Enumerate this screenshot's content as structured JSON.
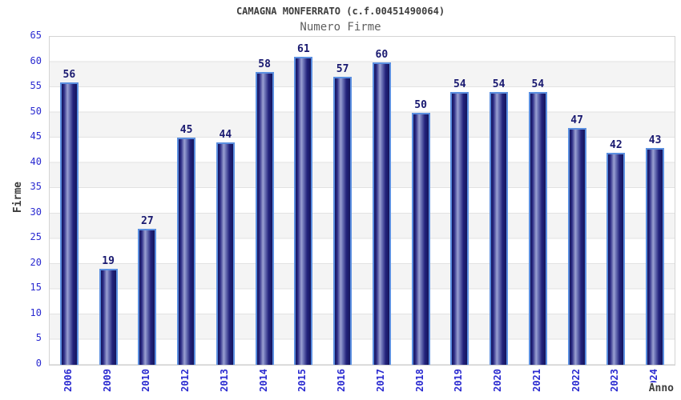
{
  "chart_data": {
    "type": "bar",
    "title": "CAMAGNA MONFERRATO (c.f.00451490064)",
    "subtitle": "Numero Firme",
    "xlabel": "Anno",
    "ylabel": "Firme",
    "categories": [
      "2006",
      "2009",
      "2010",
      "2012",
      "2013",
      "2014",
      "2015",
      "2016",
      "2017",
      "2018",
      "2019",
      "2020",
      "2021",
      "2022",
      "2023",
      "2024"
    ],
    "values": [
      56,
      19,
      27,
      45,
      44,
      58,
      61,
      57,
      60,
      50,
      54,
      54,
      54,
      47,
      42,
      43
    ],
    "ylim": [
      0,
      65
    ],
    "yticks": [
      0,
      5,
      10,
      15,
      20,
      25,
      30,
      35,
      40,
      45,
      50,
      55,
      60,
      65
    ],
    "grid": "horizontal-bands-every-5",
    "legend": "none",
    "bar_value_labels": true,
    "colors": {
      "bar_dark": "#14145c",
      "bar_highlight": "#9aa0d2",
      "bar_border": "#5b8fe0",
      "tick_label": "#2a2ad0",
      "value_label": "#191970",
      "title": "#3d3d3d",
      "subtitle": "#606060",
      "band": "#f4f4f4",
      "gridline": "#e2e2e2",
      "plot_border": "#d4d4d4",
      "background": "#ffffff"
    }
  }
}
